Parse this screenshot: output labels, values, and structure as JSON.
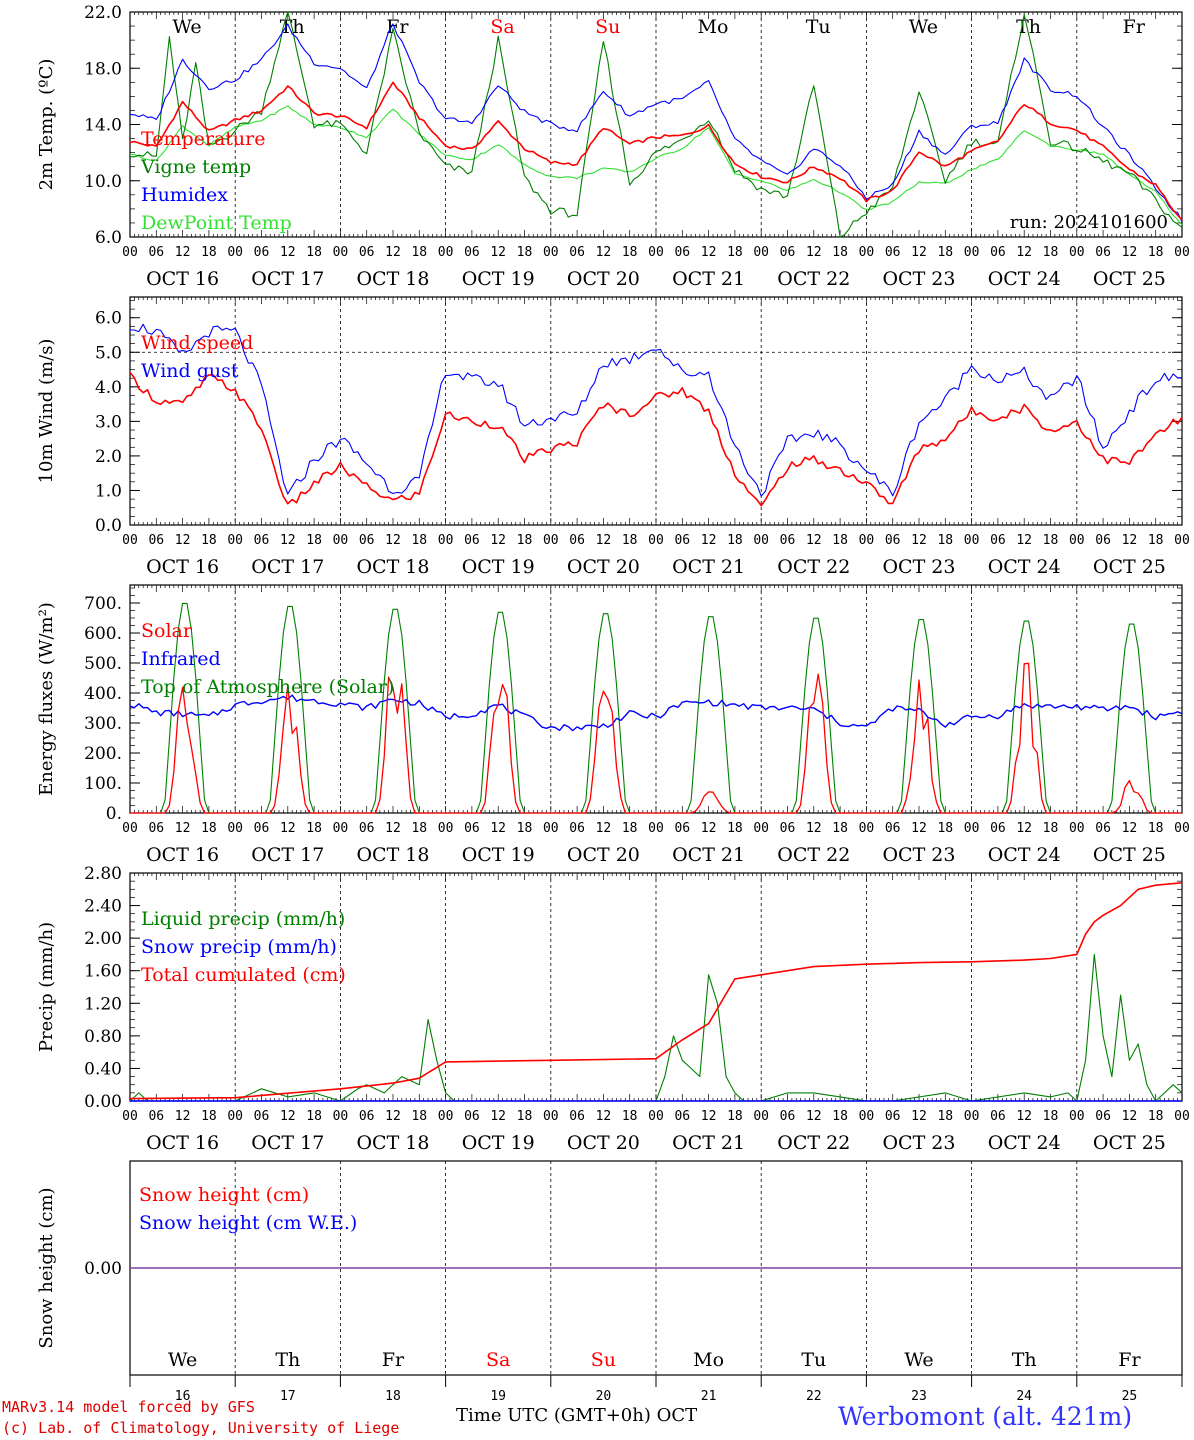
{
  "footer": {
    "model_line": "MARv3.14 model forced by GFS",
    "lab_line": "(c) Lab. of Climatology, University of Liege",
    "time_label": "Time UTC (GMT+0h)",
    "month_label": "OCT",
    "station": "Werbomont (alt. 421m)"
  },
  "colors": {
    "red": "#ff0000",
    "blue": "#0000ff",
    "green": "#007f00",
    "lightgreen": "#33e033",
    "weekend": "#ff0000",
    "station": "#3333ff"
  },
  "chart_data": [
    {
      "type": "line",
      "ylabel": "2m Temp. (ºC)",
      "yticks": [
        "6.0",
        "10.0",
        "14.0",
        "18.0",
        "22.0"
      ],
      "ylim": [
        6,
        22
      ],
      "x_unit": "hours since first 00 UTC (OCT 16)",
      "xlim": [
        0,
        240
      ],
      "day_labels": [
        "We",
        "Th",
        "Fr",
        "Sa",
        "Su",
        "Mo",
        "Tu",
        "We",
        "Th",
        "Fr"
      ],
      "weekend_days": [
        "Sa",
        "Su"
      ],
      "date_labels": [
        "OCT 16",
        "OCT 17",
        "OCT 18",
        "OCT 19",
        "OCT 20",
        "OCT 21",
        "OCT 22",
        "OCT 23",
        "OCT 24",
        "OCT 25"
      ],
      "hour_ticks": [
        "00",
        "06",
        "12",
        "18"
      ],
      "run_label": "run: 2024101600",
      "series": [
        {
          "name": "Temperature",
          "color": "red",
          "x": [
            0,
            6,
            12,
            18,
            24,
            30,
            36,
            42,
            48,
            54,
            60,
            66,
            72,
            78,
            84,
            90,
            96,
            102,
            108,
            114,
            120,
            126,
            132,
            138,
            144,
            150,
            156,
            162,
            168,
            174,
            180,
            186,
            192,
            198,
            204,
            210,
            216,
            222,
            228,
            234,
            240
          ],
          "y": [
            12.8,
            12.4,
            15.6,
            13.5,
            14.3,
            15.0,
            16.7,
            14.8,
            14.6,
            13.8,
            17.0,
            14.5,
            12.5,
            12.2,
            14.2,
            12.3,
            11.3,
            11.2,
            13.8,
            12.6,
            13.1,
            13.2,
            13.9,
            11.2,
            10.3,
            9.9,
            11.0,
            10.2,
            8.6,
            9.3,
            12.1,
            11.0,
            12.1,
            12.8,
            15.5,
            14.1,
            13.6,
            12.4,
            10.8,
            9.7,
            7.1
          ]
        },
        {
          "name": "Vigne temp",
          "color": "green",
          "x": [
            0,
            6,
            9,
            12,
            15,
            18,
            24,
            30,
            36,
            42,
            48,
            54,
            60,
            66,
            72,
            78,
            84,
            90,
            96,
            102,
            108,
            114,
            120,
            126,
            132,
            138,
            144,
            150,
            156,
            162,
            168,
            174,
            180,
            186,
            192,
            198,
            204,
            210,
            216,
            222,
            228,
            234,
            240
          ],
          "y": [
            12.0,
            11.7,
            20.2,
            12.8,
            18.3,
            12.4,
            13.6,
            15.0,
            22.0,
            14.0,
            14.0,
            12.0,
            20.6,
            13.4,
            11.0,
            10.6,
            20.0,
            10.2,
            7.9,
            7.6,
            20.0,
            9.8,
            12.0,
            12.9,
            14.5,
            10.8,
            9.4,
            8.9,
            16.8,
            6.0,
            7.8,
            9.5,
            16.4,
            10.0,
            12.8,
            12.6,
            22.0,
            12.8,
            12.3,
            11.4,
            10.5,
            8.6,
            6.5
          ]
        },
        {
          "name": "Humidex",
          "color": "blue",
          "x": [
            0,
            6,
            12,
            18,
            24,
            30,
            36,
            42,
            48,
            54,
            60,
            66,
            72,
            78,
            84,
            90,
            96,
            102,
            108,
            114,
            120,
            126,
            132,
            138,
            144,
            150,
            156,
            162,
            168,
            174,
            180,
            186,
            192,
            198,
            204,
            210,
            216,
            222,
            228,
            234,
            240
          ],
          "y": [
            14.8,
            14.3,
            18.6,
            16.6,
            17.2,
            18.6,
            21.0,
            18.4,
            18.0,
            16.5,
            21.2,
            17.0,
            14.4,
            14.1,
            16.8,
            14.9,
            14.0,
            13.6,
            16.4,
            14.6,
            15.5,
            15.8,
            17.0,
            12.9,
            11.4,
            10.3,
            12.3,
            11.1,
            8.8,
            9.7,
            13.5,
            11.8,
            13.9,
            14.1,
            18.6,
            16.5,
            16.1,
            13.8,
            11.8,
            9.5,
            7.2
          ]
        },
        {
          "name": "DewPoint Temp",
          "color": "lightgreen",
          "x": [
            0,
            6,
            12,
            18,
            24,
            30,
            36,
            42,
            48,
            54,
            60,
            66,
            72,
            78,
            84,
            90,
            96,
            102,
            108,
            114,
            120,
            126,
            132,
            138,
            144,
            150,
            156,
            162,
            168,
            174,
            180,
            186,
            192,
            198,
            204,
            210,
            216,
            222,
            228,
            234,
            240
          ],
          "y": [
            11.9,
            11.4,
            13.9,
            12.5,
            13.8,
            14.3,
            15.3,
            14.0,
            13.8,
            13.1,
            15.1,
            13.3,
            11.8,
            11.5,
            12.6,
            11.1,
            10.3,
            10.2,
            10.9,
            10.6,
            11.6,
            12.3,
            13.8,
            10.5,
            10.0,
            9.3,
            10.1,
            9.2,
            7.9,
            8.5,
            9.9,
            9.8,
            10.8,
            11.5,
            13.6,
            12.5,
            12.2,
            11.9,
            10.4,
            9.2,
            6.8
          ]
        }
      ]
    },
    {
      "type": "line",
      "ylabel": "10m Wind (m/s)",
      "yticks": [
        "0.0",
        "1.0",
        "2.0",
        "3.0",
        "4.0",
        "5.0",
        "6.0"
      ],
      "ylim": [
        0,
        6.6
      ],
      "reference_line": 5.0,
      "xlim": [
        0,
        240
      ],
      "date_labels": [
        "OCT 16",
        "OCT 17",
        "OCT 18",
        "OCT 19",
        "OCT 20",
        "OCT 21",
        "OCT 22",
        "OCT 23",
        "OCT 24",
        "OCT 25"
      ],
      "hour_ticks": [
        "00",
        "06",
        "12",
        "18"
      ],
      "series": [
        {
          "name": "Wind speed",
          "color": "red",
          "x": [
            0,
            6,
            12,
            18,
            24,
            30,
            36,
            42,
            48,
            54,
            60,
            66,
            72,
            78,
            84,
            90,
            96,
            102,
            108,
            114,
            120,
            126,
            132,
            138,
            144,
            150,
            156,
            162,
            168,
            174,
            180,
            186,
            192,
            198,
            204,
            210,
            216,
            222,
            228,
            234,
            240
          ],
          "y": [
            4.3,
            3.6,
            3.5,
            4.3,
            3.9,
            2.8,
            0.5,
            1.2,
            1.7,
            1.1,
            0.7,
            0.9,
            3.2,
            3.0,
            2.9,
            1.9,
            2.2,
            2.4,
            3.5,
            3.2,
            3.7,
            3.9,
            3.3,
            1.5,
            0.5,
            1.7,
            1.9,
            1.6,
            1.2,
            0.6,
            2.2,
            2.5,
            3.3,
            3.1,
            3.4,
            2.7,
            3.0,
            1.9,
            1.8,
            2.6,
            3.1
          ]
        },
        {
          "name": "Wind gust",
          "color": "blue",
          "x": [
            0,
            6,
            12,
            18,
            24,
            30,
            36,
            42,
            48,
            54,
            60,
            66,
            72,
            78,
            84,
            90,
            96,
            102,
            108,
            114,
            120,
            126,
            132,
            138,
            144,
            150,
            156,
            162,
            168,
            174,
            180,
            186,
            192,
            198,
            204,
            210,
            216,
            222,
            228,
            234,
            240
          ],
          "y": [
            5.8,
            5.6,
            4.9,
            5.6,
            5.6,
            4.0,
            0.8,
            1.9,
            2.5,
            1.8,
            1.0,
            1.3,
            4.5,
            4.2,
            4.1,
            2.9,
            3.1,
            3.2,
            4.7,
            4.8,
            5.2,
            4.4,
            4.4,
            2.3,
            0.9,
            2.4,
            2.7,
            2.3,
            1.6,
            0.9,
            3.0,
            3.6,
            4.6,
            4.2,
            4.4,
            3.6,
            4.3,
            2.2,
            3.3,
            4.2,
            4.3
          ]
        }
      ]
    },
    {
      "type": "line",
      "ylabel": "Energy fluxes (W/m²)",
      "yticks": [
        "0.",
        "100.",
        "200.",
        "300.",
        "400.",
        "500.",
        "600.",
        "700."
      ],
      "ylim": [
        0,
        760
      ],
      "xlim": [
        0,
        240
      ],
      "date_labels": [
        "OCT 16",
        "OCT 17",
        "OCT 18",
        "OCT 19",
        "OCT 20",
        "OCT 21",
        "OCT 22",
        "OCT 23",
        "OCT 24",
        "OCT 25"
      ],
      "hour_ticks": [
        "00",
        "06",
        "12",
        "18"
      ],
      "series": [
        {
          "name": "Solar",
          "color": "red",
          "daily_peaks": [
            400,
            350,
            470,
            420,
            460,
            60,
            420,
            390,
            420,
            90
          ]
        },
        {
          "name": "Infrared",
          "color": "blue",
          "x": [
            0,
            6,
            12,
            18,
            24,
            30,
            36,
            42,
            48,
            54,
            60,
            66,
            72,
            78,
            84,
            90,
            96,
            102,
            108,
            114,
            120,
            126,
            132,
            138,
            144,
            150,
            156,
            162,
            168,
            174,
            180,
            186,
            192,
            198,
            204,
            210,
            216,
            222,
            228,
            234,
            240
          ],
          "y": [
            365,
            335,
            330,
            320,
            360,
            375,
            385,
            375,
            365,
            350,
            380,
            365,
            320,
            330,
            360,
            320,
            285,
            285,
            290,
            330,
            320,
            365,
            370,
            360,
            350,
            350,
            345,
            300,
            285,
            350,
            340,
            295,
            320,
            325,
            360,
            355,
            355,
            345,
            355,
            320,
            340
          ]
        },
        {
          "name": "Top of Atmosphere (Solar)",
          "color": "green",
          "daily_peaks": [
            710,
            700,
            690,
            680,
            675,
            665,
            660,
            655,
            650,
            640
          ]
        }
      ]
    },
    {
      "type": "line",
      "ylabel": "Precip (mm/h)",
      "yticks": [
        "0.00",
        "0.40",
        "0.80",
        "1.20",
        "1.60",
        "2.00",
        "2.40",
        "2.80"
      ],
      "ylim": [
        0,
        2.8
      ],
      "xlim": [
        0,
        240
      ],
      "date_labels": [
        "OCT 16",
        "OCT 17",
        "OCT 18",
        "OCT 19",
        "OCT 20",
        "OCT 21",
        "OCT 22",
        "OCT 23",
        "OCT 24",
        "OCT 25"
      ],
      "hour_ticks": [
        "00",
        "06",
        "12",
        "18"
      ],
      "series": [
        {
          "name": "Liquid precip (mm/h)",
          "color": "green",
          "x": [
            0,
            2,
            4,
            24,
            26,
            30,
            36,
            42,
            48,
            52,
            54,
            58,
            62,
            66,
            68,
            70,
            72,
            74,
            120,
            122,
            124,
            126,
            128,
            130,
            132,
            134,
            136,
            138,
            140,
            142,
            144,
            150,
            156,
            162,
            168,
            174,
            186,
            192,
            204,
            210,
            214,
            216,
            218,
            220,
            222,
            224,
            226,
            228,
            230,
            232,
            234,
            236,
            238,
            240
          ],
          "y": [
            0,
            0.1,
            0,
            0,
            0.05,
            0.15,
            0.05,
            0.1,
            0,
            0.15,
            0.2,
            0.1,
            0.3,
            0.2,
            1.0,
            0.5,
            0.1,
            0,
            0,
            0.3,
            0.8,
            0.5,
            0.4,
            0.3,
            1.55,
            1.2,
            0.3,
            0.1,
            0,
            0,
            0,
            0.1,
            0.1,
            0.05,
            0,
            0,
            0.1,
            0,
            0.1,
            0.05,
            0.1,
            0,
            0.5,
            1.8,
            0.8,
            0.3,
            1.3,
            0.5,
            0.7,
            0.2,
            0,
            0.1,
            0.2,
            0.1
          ]
        },
        {
          "name": "Snow precip (mm/h)",
          "color": "blue",
          "x": [
            0,
            240
          ],
          "y": [
            0,
            0
          ]
        },
        {
          "name": "Total cumulated (cm)",
          "color": "red",
          "x": [
            0,
            24,
            48,
            60,
            66,
            72,
            96,
            120,
            126,
            132,
            138,
            144,
            156,
            168,
            180,
            192,
            204,
            210,
            216,
            218,
            220,
            222,
            226,
            230,
            234,
            240
          ],
          "y": [
            0.03,
            0.04,
            0.15,
            0.22,
            0.28,
            0.48,
            0.5,
            0.52,
            0.75,
            0.95,
            1.5,
            1.55,
            1.65,
            1.68,
            1.7,
            1.71,
            1.73,
            1.75,
            1.8,
            2.05,
            2.2,
            2.28,
            2.4,
            2.6,
            2.65,
            2.68
          ]
        }
      ]
    },
    {
      "type": "line",
      "ylabel": "Snow height (cm)",
      "yticks": [
        "0.00"
      ],
      "ylim": [
        -1,
        1
      ],
      "xlim": [
        0,
        240
      ],
      "day_labels": [
        "We",
        "Th",
        "Fr",
        "Sa",
        "Su",
        "Mo",
        "Tu",
        "We",
        "Th",
        "Fr"
      ],
      "weekend_days": [
        "Sa",
        "Su"
      ],
      "day_numbers": [
        "16",
        "17",
        "18",
        "19",
        "20",
        "21",
        "22",
        "23",
        "24",
        "25"
      ],
      "series": [
        {
          "name": "Snow height (cm)",
          "color": "red",
          "x": [
            0,
            240
          ],
          "y": [
            0,
            0
          ]
        },
        {
          "name": "Snow height (cm W.E.)",
          "color": "blue",
          "x": [
            0,
            240
          ],
          "y": [
            0,
            0
          ]
        }
      ]
    }
  ]
}
